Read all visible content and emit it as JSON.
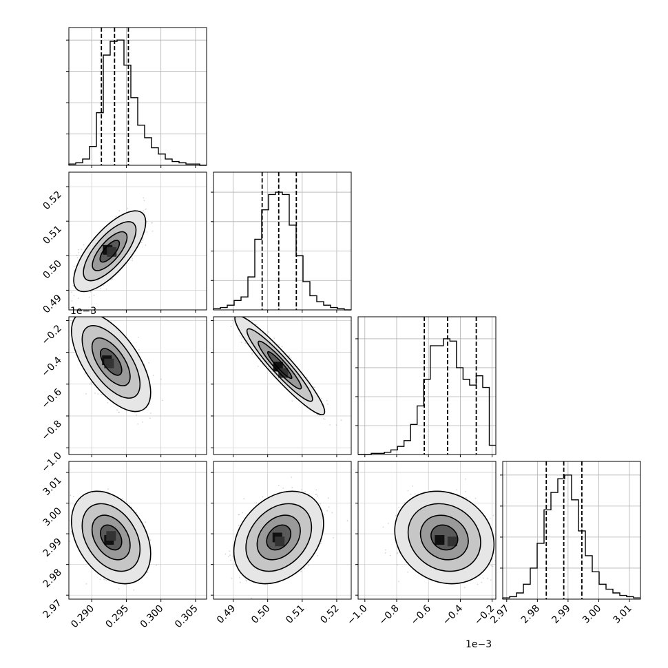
{
  "chart_data": {
    "type": "scatter",
    "title": "",
    "params": [
      {
        "ticks": [
          0.29,
          0.295,
          0.3,
          0.305
        ],
        "tick_labels": [
          "0.290",
          "0.295",
          "0.300",
          "0.305"
        ],
        "range": [
          0.2867,
          0.3066
        ],
        "quantiles": [
          0.2914,
          0.2933,
          0.2953
        ],
        "hist_ylim": 1.1,
        "hist": [
          0.01,
          0.02,
          0.05,
          0.15,
          0.42,
          0.88,
          0.99,
          1.0,
          0.8,
          0.54,
          0.32,
          0.22,
          0.14,
          0.09,
          0.05,
          0.03,
          0.02,
          0.01,
          0.01,
          0.0
        ]
      },
      {
        "ticks": [
          0.49,
          0.5,
          0.51,
          0.52
        ],
        "tick_labels": [
          "0.49",
          "0.50",
          "0.51",
          "0.52"
        ],
        "range": [
          0.4843,
          0.5242
        ],
        "quantiles": [
          0.4984,
          0.5032,
          0.5083
        ],
        "hist_ylim": 1.17,
        "hist": [
          0.01,
          0.02,
          0.04,
          0.08,
          0.11,
          0.28,
          0.6,
          0.85,
          0.98,
          1.0,
          0.98,
          0.72,
          0.46,
          0.24,
          0.12,
          0.07,
          0.04,
          0.02,
          0.01,
          0.0
        ]
      },
      {
        "ticks": [
          -1.0,
          -0.8,
          -0.6,
          -0.4,
          -0.2
        ],
        "tick_labels": [
          "−1.0",
          "−0.8",
          "−0.6",
          "−0.4",
          "−0.2"
        ],
        "ticks_left": [
          "−0.2",
          "−0.4",
          "−0.6",
          "−0.8",
          "−1.0"
        ],
        "scale_label": "1e−3",
        "range": [
          -1.0424,
          -0.1766
        ],
        "quantiles": [
          -0.6264,
          -0.4797,
          -0.2996
        ],
        "hist_ylim": 1.19,
        "hist": [
          0.0,
          0.0,
          0.01,
          0.01,
          0.02,
          0.04,
          0.07,
          0.12,
          0.26,
          0.42,
          0.65,
          0.94,
          0.94,
          1.0,
          0.98,
          0.75,
          0.65,
          0.6,
          0.68,
          0.58,
          0.08
        ]
      },
      {
        "ticks": [
          2.97,
          2.98,
          2.99,
          3.0,
          3.01
        ],
        "tick_labels": [
          "2.97",
          "2.98",
          "2.99",
          "3.00",
          "3.01"
        ],
        "scale_label": "1e−3",
        "range": [
          2.9687,
          3.0136
        ],
        "quantiles": [
          2.9829,
          2.9886,
          2.9945
        ],
        "hist_ylim": 1.11,
        "hist": [
          0.01,
          0.02,
          0.05,
          0.12,
          0.25,
          0.45,
          0.72,
          0.86,
          0.97,
          1.0,
          0.8,
          0.55,
          0.35,
          0.22,
          0.12,
          0.08,
          0.05,
          0.03,
          0.02,
          0.01
        ]
      }
    ],
    "pairs": [
      {
        "col": 0,
        "row": 1,
        "center": [
          0.2926,
          0.5013
        ],
        "spread": [
          0.002,
          0.0045
        ],
        "rho": 0.72,
        "hot": [
          [
            0.2923,
            0.5017
          ],
          [
            0.2929,
            0.5011
          ]
        ]
      },
      {
        "col": 0,
        "row": 2,
        "center": [
          0.2928,
          -0.46
        ],
        "spread": [
          0.0022,
          0.12
        ],
        "rho": -0.62,
        "hot": [
          [
            0.2922,
            -0.45
          ],
          [
            0.2925,
            -0.47
          ]
        ]
      },
      {
        "col": 1,
        "row": 2,
        "center": [
          0.5035,
          -0.48
        ],
        "spread": [
          0.005,
          0.12
        ],
        "rho": -0.94,
        "hot": [
          [
            0.503,
            -0.49
          ],
          [
            0.5045,
            -0.53
          ]
        ]
      },
      {
        "col": 0,
        "row": 3,
        "center": [
          0.2928,
          2.9888
        ],
        "spread": [
          0.0022,
          0.0058
        ],
        "rho": -0.35,
        "hot": [
          [
            0.2925,
            2.988
          ],
          [
            0.2928,
            2.9893
          ]
        ]
      },
      {
        "col": 1,
        "row": 3,
        "center": [
          0.5032,
          2.9888
        ],
        "spread": [
          0.005,
          0.0058
        ],
        "rho": 0.3,
        "hot": [
          [
            0.5028,
            2.9888
          ],
          [
            0.5035,
            2.9875
          ]
        ]
      },
      {
        "col": 2,
        "row": 3,
        "center": [
          -0.5,
          2.9888
        ],
        "spread": [
          0.12,
          0.0058
        ],
        "rho": -0.15,
        "hot": [
          [
            -0.53,
            2.988
          ],
          [
            -0.45,
            2.9875
          ]
        ]
      }
    ],
    "grid": true
  }
}
